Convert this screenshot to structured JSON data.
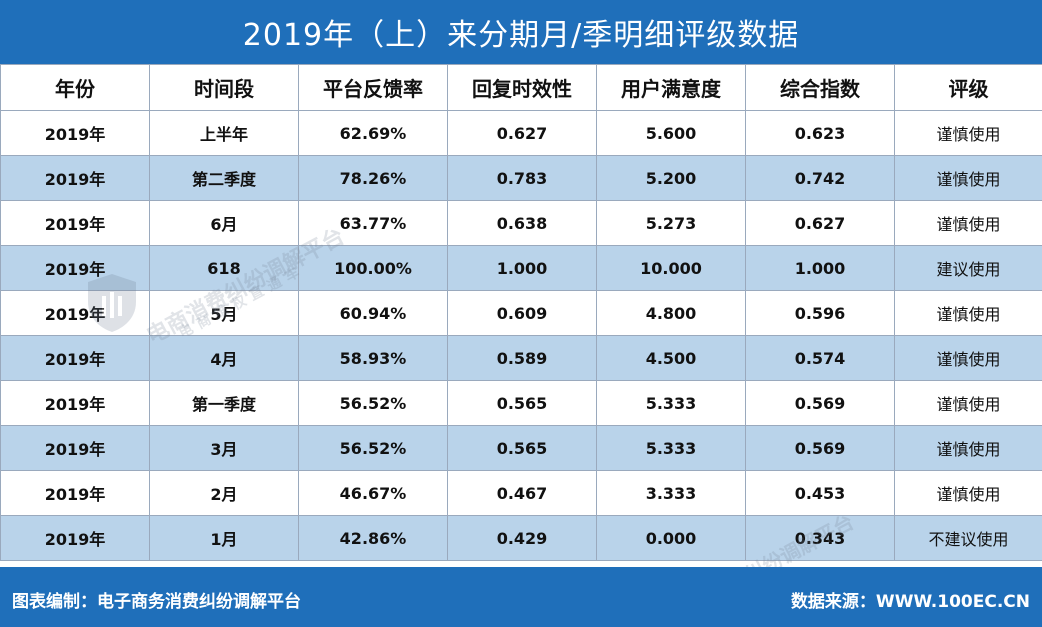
{
  "title": "2019年（上）来分期月/季明细评级数据",
  "columns": [
    "年份",
    "时间段",
    "平台反馈率",
    "回复时效性",
    "用户满意度",
    "综合指数",
    "评级"
  ],
  "rows": [
    [
      "2019年",
      "上半年",
      "62.69%",
      "0.627",
      "5.600",
      "0.623",
      "谨慎使用"
    ],
    [
      "2019年",
      "第二季度",
      "78.26%",
      "0.783",
      "5.200",
      "0.742",
      "谨慎使用"
    ],
    [
      "2019年",
      "6月",
      "63.77%",
      "0.638",
      "5.273",
      "0.627",
      "谨慎使用"
    ],
    [
      "2019年",
      "618",
      "100.00%",
      "1.000",
      "10.000",
      "1.000",
      "建议使用"
    ],
    [
      "2019年",
      "5月",
      "60.94%",
      "0.609",
      "4.800",
      "0.596",
      "谨慎使用"
    ],
    [
      "2019年",
      "4月",
      "58.93%",
      "0.589",
      "4.500",
      "0.574",
      "谨慎使用"
    ],
    [
      "2019年",
      "第一季度",
      "56.52%",
      "0.565",
      "5.333",
      "0.569",
      "谨慎使用"
    ],
    [
      "2019年",
      "3月",
      "56.52%",
      "0.565",
      "5.333",
      "0.569",
      "谨慎使用"
    ],
    [
      "2019年",
      "2月",
      "46.67%",
      "0.467",
      "3.333",
      "0.453",
      "谨慎使用"
    ],
    [
      "2019年",
      "1月",
      "42.86%",
      "0.429",
      "0.000",
      "0.343",
      "不建议使用"
    ]
  ],
  "watermark": {
    "main": "电商消费纠纷调解平台",
    "sub": "电商维权直通车"
  },
  "footer": {
    "left": "图表编制：电子商务消费纠纷调解平台",
    "right": "数据来源：WWW.100EC.CN"
  },
  "colors": {
    "header_blue": "#1f6fba",
    "alt_row": "#b9d3ea",
    "border": "#9aa9bd"
  }
}
